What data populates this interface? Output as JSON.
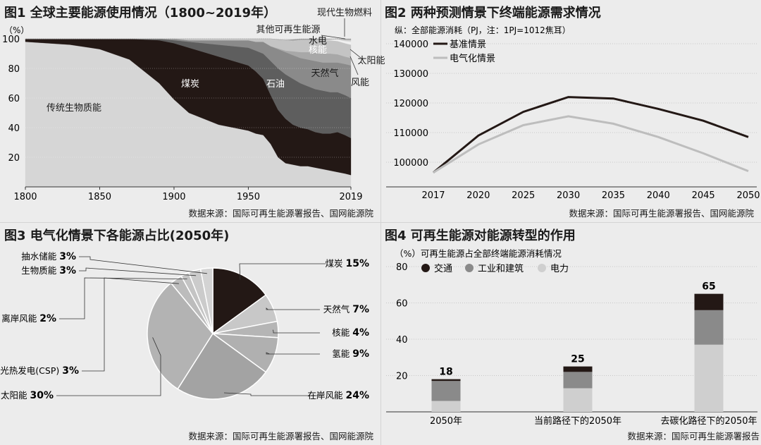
{
  "chart_data": [
    {
      "type": "area",
      "title": "图1 全球主要能源使用情况（1800~2019年）",
      "ylabel": "（%）",
      "xlim": [
        1800,
        2019
      ],
      "ylim": [
        0,
        100
      ],
      "x_ticks": [
        "1800",
        "1850",
        "1900",
        "1950",
        "2019"
      ],
      "y_ticks": [
        "100",
        "80",
        "60",
        "40",
        "20"
      ],
      "colors": {
        "传统生物质能": "#d6d6d6",
        "煤炭": "#231815",
        "石油": "#5e5e5e",
        "天然气": "#8a8a8a",
        "核能": "#a8a8a8",
        "水电": "#c4c4c4",
        "风能": "#f0f0f0",
        "太阳能": "#d8d8d8",
        "其他可再生能源": "#b8b8b8",
        "现代生物燃料": "#9e9e9e"
      },
      "x": [
        1800,
        1830,
        1850,
        1870,
        1890,
        1900,
        1910,
        1920,
        1930,
        1940,
        1950,
        1955,
        1960,
        1965,
        1970,
        1975,
        1980,
        1985,
        1990,
        1995,
        2000,
        2005,
        2010,
        2015,
        2019
      ],
      "series": [
        {
          "name": "传统生物质能",
          "values": [
            98,
            96,
            93,
            86,
            70,
            59,
            50,
            46,
            42,
            40,
            38,
            36,
            35,
            29,
            20,
            16,
            15,
            14,
            14,
            13,
            12,
            11,
            10,
            9,
            8
          ]
        },
        {
          "name": "煤炭",
          "values": [
            2,
            4,
            7,
            14,
            29,
            38,
            44,
            45,
            46,
            45,
            44,
            42,
            38,
            33,
            32,
            30,
            27,
            26,
            25,
            24,
            24,
            25,
            27,
            26,
            25
          ]
        },
        {
          "name": "石油",
          "values": [
            0,
            0,
            0,
            0,
            1,
            2,
            4,
            6,
            8,
            10,
            12,
            14,
            17,
            23,
            28,
            30,
            31,
            30,
            29,
            29,
            29,
            28,
            27,
            27,
            27
          ]
        },
        {
          "name": "天然气",
          "values": [
            0,
            0,
            0,
            0,
            0,
            1,
            1,
            2,
            3,
            4,
            5,
            6,
            8,
            10,
            13,
            15,
            16,
            17,
            18,
            19,
            19,
            20,
            20,
            21,
            22
          ]
        },
        {
          "name": "核能",
          "values": [
            0,
            0,
            0,
            0,
            0,
            0,
            0,
            0,
            0,
            0,
            0,
            0,
            0,
            0,
            0.5,
            1,
            2.5,
            4,
            5,
            5.5,
            6,
            6,
            5.5,
            5,
            5
          ]
        },
        {
          "name": "水电",
          "values": [
            0,
            0,
            0,
            0,
            0,
            0,
            1,
            1,
            1,
            1,
            1,
            2,
            2,
            5,
            6,
            7,
            7,
            8,
            8,
            8.5,
            9,
            9,
            9,
            9,
            9
          ]
        },
        {
          "name": "风能",
          "values": [
            0,
            0,
            0,
            0,
            0,
            0,
            0,
            0,
            0,
            0,
            0,
            0,
            0,
            0,
            0,
            0,
            0,
            0,
            0,
            0,
            0.2,
            0.5,
            1,
            1.5,
            2
          ]
        },
        {
          "name": "太阳能",
          "values": [
            0,
            0,
            0,
            0,
            0,
            0,
            0,
            0,
            0,
            0,
            0,
            0,
            0,
            0,
            0,
            0,
            0,
            0,
            0,
            0,
            0,
            0,
            0.3,
            0.6,
            1
          ]
        },
        {
          "name": "其他可再生能源",
          "values": [
            0,
            0,
            0,
            0,
            0,
            0,
            0,
            0,
            0,
            0,
            0,
            0,
            0,
            0,
            0,
            0,
            0.5,
            0.5,
            0.5,
            0.5,
            0.4,
            0.3,
            0.3,
            0.5,
            0.5
          ]
        },
        {
          "name": "现代生物燃料",
          "values": [
            0,
            0,
            0,
            0,
            0,
            0,
            0,
            0,
            0,
            0,
            0,
            0,
            0,
            0,
            0,
            0,
            0.5,
            0.5,
            0.5,
            0.5,
            0.4,
            0.2,
            0.2,
            0.4,
            0.5
          ]
        }
      ],
      "labels": [
        "传统生物质能",
        "煤炭",
        "石油",
        "天然气",
        "核能",
        "水电",
        "风能",
        "太阳能",
        "其他可再生能源",
        "现代生物燃料"
      ],
      "source": "数据来源：国际可再生能源署报告、国网能源院"
    },
    {
      "type": "line",
      "title": "图2 两种预测情景下终端能源需求情况",
      "ylabel": "纵：全部能源消耗（PJ，注：1PJ=1012焦耳）",
      "categories": [
        "2017",
        "2020",
        "2025",
        "2030",
        "2035",
        "2040",
        "2045",
        "2050"
      ],
      "ylim": [
        90000,
        140000
      ],
      "y_ticks": [
        "140000",
        "130000",
        "120000",
        "110000",
        "100000"
      ],
      "series": [
        {
          "name": "基准情景",
          "color": "#231815",
          "values": [
            96500,
            109000,
            117000,
            122000,
            121500,
            118000,
            114000,
            108500
          ]
        },
        {
          "name": "电气化情景",
          "color": "#bdbdbd",
          "values": [
            96500,
            106000,
            112500,
            115500,
            113000,
            108500,
            103000,
            97000
          ]
        }
      ],
      "source": "数据来源：国际可再生能源署报告、国网能源院"
    },
    {
      "type": "pie",
      "title": "图3 电气化情景下各能源占比(2050年)",
      "slices": [
        {
          "label": "煤炭",
          "value": 15,
          "display": "15%",
          "color": "#231815"
        },
        {
          "label": "天然气",
          "value": 7,
          "display": "7%",
          "color": "#c8c8c8"
        },
        {
          "label": "核能",
          "value": 4,
          "display": "4%",
          "color": "#b5b5b5"
        },
        {
          "label": "氢能",
          "value": 9,
          "display": "9%",
          "color": "#b0b0b0"
        },
        {
          "label": "在岸风能",
          "value": 24,
          "display": "24%",
          "color": "#a3a3a3"
        },
        {
          "label": "太阳能",
          "value": 30,
          "display": "30%",
          "color": "#b3b3b3"
        },
        {
          "label": "光热发电(CSP)",
          "value": 3,
          "display": "3%",
          "color": "#bcbcbc"
        },
        {
          "label": "离岸风能",
          "value": 2,
          "display": "2%",
          "color": "#c4c4c4"
        },
        {
          "label": "生物质能",
          "value": 3,
          "display": "3%",
          "color": "#cbcbcb"
        },
        {
          "label": "抽水储能",
          "value": 3,
          "display": "3%",
          "color": "#d3d3d3"
        }
      ],
      "source": "数据来源：国际可再生能源署报告、国网能源院"
    },
    {
      "type": "bar",
      "title": "图4 可再生能源对能源转型的作用",
      "ylabel": "（%）可再生能源占全部终端能源消耗情况",
      "categories": [
        "2050年",
        "当前路径下的2050年",
        "去碳化路径下的2050年"
      ],
      "ylim": [
        0,
        80
      ],
      "y_ticks": [
        "80",
        "60",
        "40",
        "20"
      ],
      "totals": [
        "18",
        "25",
        "65"
      ],
      "series": [
        {
          "name": "交通",
          "color": "#231815",
          "values": [
            1,
            3,
            9
          ]
        },
        {
          "name": "工业和建筑",
          "color": "#8a8a8a",
          "values": [
            11,
            9,
            19
          ]
        },
        {
          "name": "电力",
          "color": "#cfcfcf",
          "values": [
            6,
            13,
            37
          ]
        }
      ],
      "source": "数据来源：国际可再生能源署报告"
    }
  ]
}
